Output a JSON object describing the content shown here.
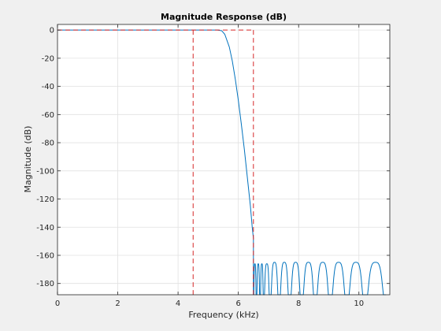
{
  "colors": {
    "figure_background": "#f0f0f0",
    "axes_background": "#ffffff",
    "grid": "#e1e1e1",
    "axis": "#262626",
    "response_line": "#0072bd",
    "spec_line": "#d62728"
  },
  "chart_data": {
    "type": "line",
    "title": "Magnitude Response (dB)",
    "xlabel": "Frequency (kHz)",
    "ylabel": "Magnitude (dB)",
    "xlim": [
      0,
      11.025
    ],
    "ylim": [
      -188,
      4
    ],
    "grid": true,
    "x_ticks": [
      0,
      2,
      4,
      6,
      8,
      10
    ],
    "y_ticks": [
      0,
      -20,
      -40,
      -60,
      -80,
      -100,
      -120,
      -140,
      -160,
      -180
    ],
    "series": [
      {
        "x": [
          0,
          5.3,
          5.45,
          5.55,
          5.7,
          5.8,
          5.9,
          6.0,
          6.1,
          6.2,
          6.3,
          6.4,
          6.46,
          6.5
        ],
        "values": [
          0,
          0,
          -0.5,
          -3,
          -12,
          -22,
          -35,
          -50,
          -67,
          -85,
          -105,
          -125,
          -140,
          -148
        ],
        "stopband_lobes": {
          "nulls": [
            6.5,
            6.6,
            6.72,
            6.84,
            7.05,
            7.35,
            7.7,
            8.1,
            8.55,
            9.05,
            9.6,
            10.2,
            10.9
          ],
          "peaks": [
            -166,
            -166,
            -166,
            -166,
            -165,
            -165,
            -165,
            -165,
            -165,
            -165,
            -165,
            -165
          ]
        }
      }
    ],
    "spec_mask": {
      "passband_edge_khz": 4.5,
      "stopband_edge_khz": 6.5,
      "passband_level_db": 0,
      "stopband_level_db": -188
    }
  }
}
